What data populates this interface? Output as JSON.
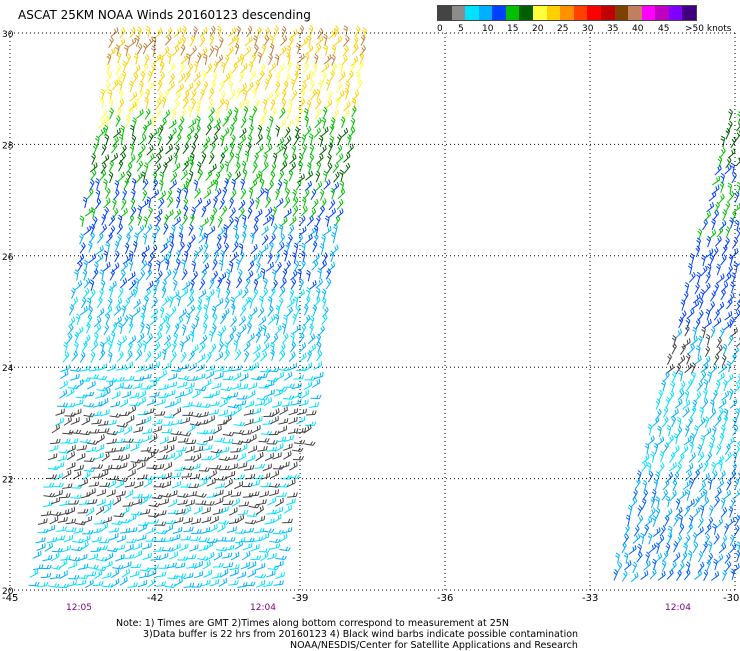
{
  "title": "ASCAT 25KM NOAA Winds 20160123 descending",
  "legend": {
    "ticks": [
      "0",
      "5",
      "10",
      "15",
      "20",
      "25",
      "30",
      "35",
      "40",
      "45",
      ">50 knots"
    ],
    "colors": [
      "#444444",
      "#8c8c8c",
      "#00e0ff",
      "#00b0ff",
      "#0040ff",
      "#00c000",
      "#006000",
      "#ffff40",
      "#ffd000",
      "#ff9000",
      "#ff4000",
      "#ff0000",
      "#c00000",
      "#804000",
      "#c08060",
      "#ff00ff",
      "#c000c0",
      "#8000ff",
      "#400080"
    ]
  },
  "map": {
    "lat_labels": [
      "30",
      "28",
      "26",
      "24",
      "22",
      "20"
    ],
    "lon_labels": [
      "-45",
      "-42",
      "-39",
      "-36",
      "-33",
      "-30"
    ],
    "times": [
      "12:05",
      "12:04",
      "12:04"
    ]
  },
  "notes": {
    "line1": "Note: 1) Times are GMT 2)Times along bottom correspond to measurement at 25N",
    "line2": "3)Data buffer is 22 hrs from 20160123 4) Black wind barbs indicate possible contamination",
    "line3": "NOAA/NESDIS/Center for Satellite Applications and Research"
  }
}
